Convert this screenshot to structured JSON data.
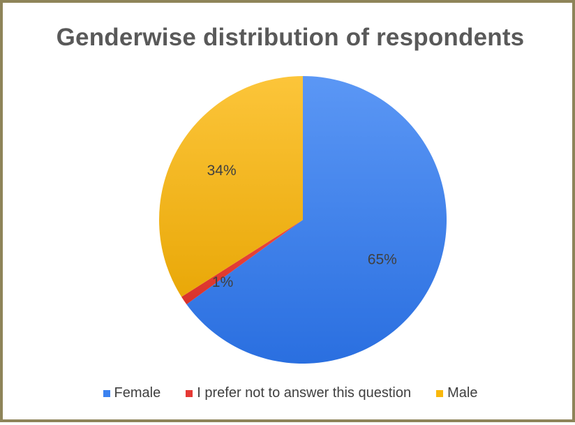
{
  "chart_data": {
    "type": "pie",
    "title": "Genderwise distribution of respondents",
    "categories": [
      "Female",
      "I prefer not to answer this question",
      "Male"
    ],
    "values": [
      65,
      1,
      34
    ],
    "data_labels": [
      "65%",
      "1%",
      "34%"
    ],
    "colors": [
      "#3b82f0",
      "#e53935",
      "#f9b80c"
    ],
    "legend_position": "bottom",
    "start_angle_deg": 0,
    "direction": "clockwise"
  }
}
